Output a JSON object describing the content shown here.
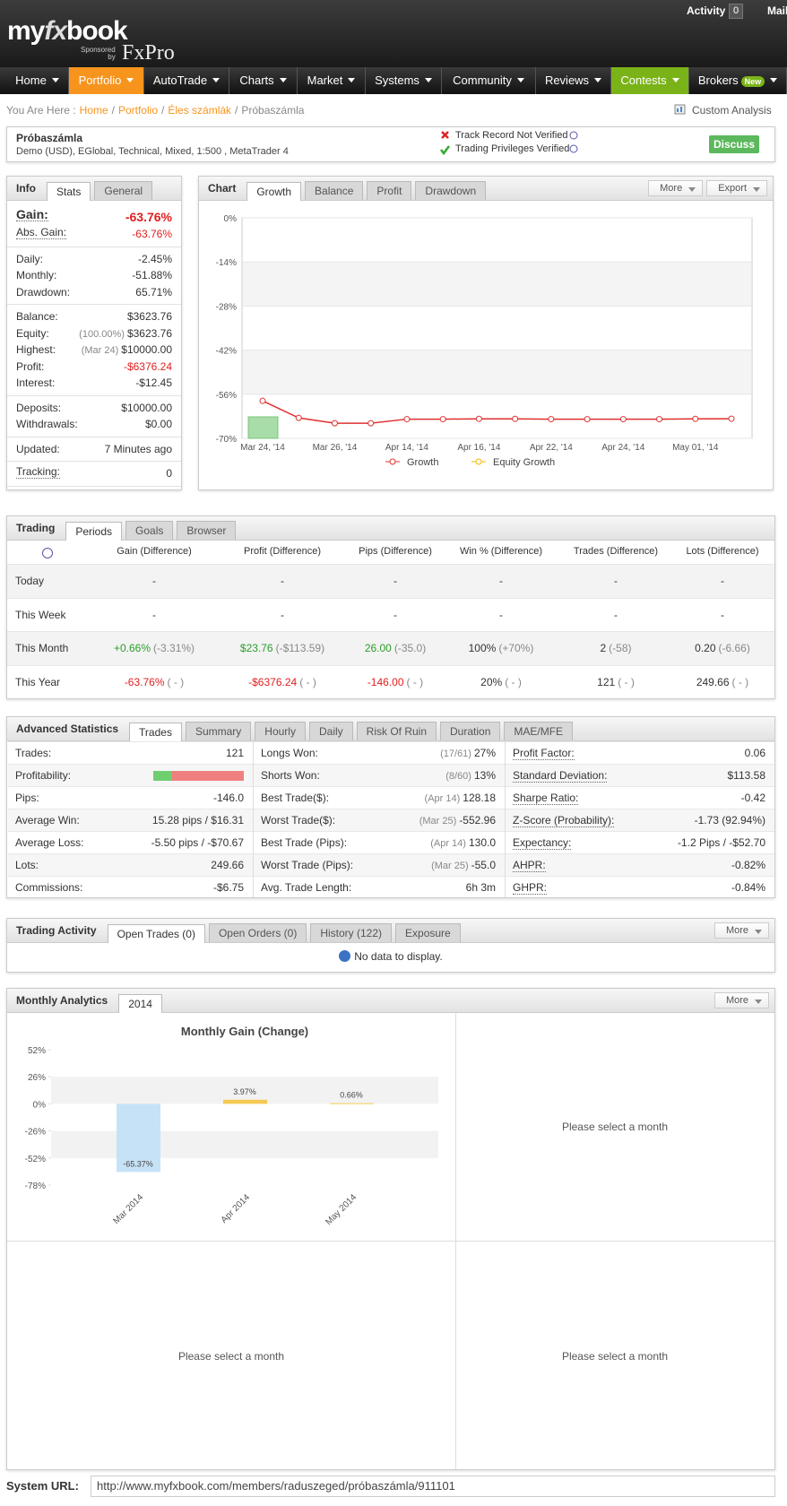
{
  "header": {
    "logo": [
      "my",
      "fx",
      "book"
    ],
    "sponsored": "Sponsored",
    "by": "by",
    "sponsor": "FxPro",
    "activity": "Activity",
    "activity_count": 0,
    "mail": "Mail"
  },
  "nav": {
    "items": [
      {
        "label": "Home"
      },
      {
        "label": "Portfolio",
        "color": "#f7941d"
      },
      {
        "label": "AutoTrade"
      },
      {
        "label": "Charts"
      },
      {
        "label": "Market"
      },
      {
        "label": "Systems"
      },
      {
        "label": "Community"
      },
      {
        "label": "Reviews"
      },
      {
        "label": "Contests",
        "color": "#7ab317"
      },
      {
        "label": "Brokers"
      }
    ],
    "badge": "New"
  },
  "breadcrumb": {
    "prefix": "You Are Here :",
    "separator": "/",
    "items": [
      "Home",
      "Portfolio",
      "Éles számlák",
      "Próbaszámla"
    ],
    "custom_analysis": "Custom Analysis"
  },
  "account": {
    "name": "Próbaszámla",
    "description": "Demo (USD), EGlobal, Technical, Mixed, 1:500 , MetaTrader 4",
    "status": [
      "Track Record Not Verified",
      "Trading Privileges Verified"
    ],
    "discuss": "Discuss"
  },
  "info": {
    "title": "Info",
    "tabs": [
      "Stats",
      "General"
    ],
    "groups": [
      [
        {
          "label": "Gain:",
          "value": "-63.76%",
          "color": "#e02020",
          "underline": true
        },
        {
          "label": "Abs. Gain:",
          "value": "-63.76%",
          "color": "#e02020",
          "underline": true
        }
      ],
      [
        {
          "label": "Daily:",
          "value": "-2.45%"
        },
        {
          "label": "Monthly:",
          "value": "-51.88%"
        },
        {
          "label": "Drawdown:",
          "value": "65.71%"
        }
      ],
      [
        {
          "label": "Balance:",
          "value": "$3623.76"
        },
        {
          "label": "Equity:",
          "note": "(100.00%)",
          "value": "$3623.76"
        },
        {
          "label": "Highest:",
          "note": "(Mar 24)",
          "value": "$10000.00"
        },
        {
          "label": "Profit:",
          "value": "-$6376.24",
          "color": "#e02020"
        },
        {
          "label": "Interest:",
          "value": "-$12.45"
        }
      ],
      [
        {
          "label": "Deposits:",
          "value": "$10000.00"
        },
        {
          "label": "Withdrawals:",
          "value": "$0.00"
        }
      ],
      [
        {
          "label": "Updated:",
          "value": "7 Minutes ago"
        }
      ],
      [
        {
          "label": "Tracking:",
          "value": "0",
          "underline": true
        }
      ]
    ]
  },
  "chart": {
    "title": "Chart",
    "tabs": [
      "Growth",
      "Balance",
      "Profit",
      "Drawdown"
    ],
    "buttons": [
      "More",
      "Export"
    ],
    "growth_chart": {
      "type": "line",
      "categories": [
        "Mar 24, '14",
        null,
        "Mar 26, '14",
        null,
        "Apr 14, '14",
        null,
        "Apr 16, '14",
        null,
        "Apr 22, '14",
        null,
        "Apr 24, '14",
        null,
        "May 01, '14",
        null
      ],
      "series": [
        {
          "name": "Growth",
          "color": "#e03030",
          "values": [
            -58.1,
            -63.5,
            -65.2,
            -65.2,
            -63.9,
            -63.9,
            -63.8,
            -63.8,
            -63.9,
            -63.9,
            -63.9,
            -63.9,
            -63.8,
            -63.76
          ]
        },
        {
          "name": "Equity Growth",
          "color": "#f5b800",
          "values": [
            null,
            null,
            null,
            null,
            null,
            null,
            null,
            null,
            null,
            null,
            null,
            null,
            null,
            null
          ]
        }
      ],
      "ylim": [
        -70,
        0
      ],
      "yticks": [
        {
          "value": 0,
          "label": "0%"
        },
        {
          "value": -14,
          "label": "-14%"
        },
        {
          "value": -28,
          "label": "-28%"
        },
        {
          "value": -42,
          "label": "-42%"
        },
        {
          "value": -56,
          "label": "-56%"
        },
        {
          "value": -70,
          "label": "-70%"
        }
      ],
      "grid": true
    }
  },
  "trading": {
    "title": "Trading",
    "tabs": [
      "Periods",
      "Goals",
      "Browser"
    ],
    "columns": [
      "Gain (Difference)",
      "Profit (Difference)",
      "Pips (Difference)",
      "Win % (Difference)",
      "Trades (Difference)",
      "Lots (Difference)"
    ],
    "rows": [
      {
        "label": "Today",
        "cells": [
          [
            "-"
          ],
          [
            "-"
          ],
          [
            "-"
          ],
          [
            "-"
          ],
          [
            "-"
          ],
          [
            "-"
          ]
        ],
        "colors": [
          "#333",
          "#333",
          "#333",
          "#333",
          "#333",
          "#333"
        ]
      },
      {
        "label": "This Week",
        "cells": [
          [
            "-"
          ],
          [
            "-"
          ],
          [
            "-"
          ],
          [
            "-"
          ],
          [
            "-"
          ],
          [
            "-"
          ]
        ],
        "colors": [
          "#333",
          "#333",
          "#333",
          "#333",
          "#333",
          "#333"
        ]
      },
      {
        "label": "This Month",
        "cells": [
          [
            "+0.66%",
            "(-3.31%)"
          ],
          [
            "$23.76",
            "(-$113.59)"
          ],
          [
            "26.00",
            "(-35.0)"
          ],
          [
            "100%",
            "(+70%)"
          ],
          [
            "2",
            "(-58)"
          ],
          [
            "0.20",
            "(-6.66)"
          ]
        ],
        "colors": [
          "#2a9d2a",
          "#2a9d2a",
          "#2a9d2a",
          "#333",
          "#333",
          "#333"
        ]
      },
      {
        "label": "This Year",
        "cells": [
          [
            "-63.76%",
            "( - )"
          ],
          [
            "-$6376.24",
            "( - )"
          ],
          [
            "-146.00",
            "( - )"
          ],
          [
            "20%",
            "( - )"
          ],
          [
            "121",
            "( - )"
          ],
          [
            "249.66",
            "( - )"
          ]
        ],
        "colors": [
          "#e02020",
          "#e02020",
          "#e02020",
          "#333",
          "#333",
          "#333"
        ]
      }
    ]
  },
  "advanced": {
    "title": "Advanced Statistics",
    "tabs": [
      "Trades",
      "Summary",
      "Hourly",
      "Daily",
      "Risk Of Ruin",
      "Duration",
      "MAE/MFE"
    ],
    "columns": [
      [
        {
          "label": "Trades:",
          "value": "121"
        },
        {
          "label": "Profitability:",
          "bar": 21,
          "bar_colors": [
            "#6fcf6f",
            "#f08080"
          ]
        },
        {
          "label": "Pips:",
          "value": "-146.0"
        },
        {
          "label": "Average Win:",
          "value": "15.28 pips / $16.31"
        },
        {
          "label": "Average Loss:",
          "value": "-5.50 pips / -$70.67"
        },
        {
          "label": "Lots:",
          "value": "249.66"
        },
        {
          "label": "Commissions:",
          "value": "-$6.75"
        }
      ],
      [
        {
          "label": "Longs Won:",
          "note": "(17/61)",
          "value": "27%"
        },
        {
          "label": "Shorts Won:",
          "note": "(8/60)",
          "value": "13%"
        },
        {
          "label": "Best Trade($):",
          "note": "(Apr 14)",
          "value": "128.18"
        },
        {
          "label": "Worst Trade($):",
          "note": "(Mar 25)",
          "value": "-552.96"
        },
        {
          "label": "Best Trade (Pips):",
          "note": "(Apr 14)",
          "value": "130.0"
        },
        {
          "label": "Worst Trade (Pips):",
          "note": "(Mar 25)",
          "value": "-55.0"
        },
        {
          "label": "Avg. Trade Length:",
          "value": "6h 3m"
        }
      ],
      [
        {
          "label": "Profit Factor:",
          "value": "0.06",
          "underline": true
        },
        {
          "label": "Standard Deviation:",
          "value": "$113.58",
          "underline": true
        },
        {
          "label": "Sharpe Ratio:",
          "value": "-0.42",
          "underline": true
        },
        {
          "label": "Z-Score (Probability):",
          "value": "-1.73 (92.94%)",
          "underline": true
        },
        {
          "label": "Expectancy:",
          "value": "-1.2 Pips / -$52.70",
          "underline": true
        },
        {
          "label": "AHPR:",
          "value": "-0.82%",
          "underline": true
        },
        {
          "label": "GHPR:",
          "value": "-0.84%",
          "underline": true
        }
      ]
    ]
  },
  "activity": {
    "title": "Trading Activity",
    "tabs": [
      "Open Trades (0)",
      "Open Orders (0)",
      "History (122)",
      "Exposure"
    ],
    "buttons": [
      "More"
    ],
    "empty": "No data to display."
  },
  "monthly": {
    "title": "Monthly Analytics",
    "tabs": [
      "2014"
    ],
    "buttons": [
      "More"
    ],
    "chart": {
      "type": "bar",
      "title": "Monthly Gain (Change)",
      "categories": [
        "Mar 2014",
        "Apr 2014",
        "May 2014"
      ],
      "values": [
        -65.37,
        3.97,
        0.66
      ],
      "value_labels": [
        "-65.37%",
        "3.97%",
        "0.66%"
      ],
      "colors": [
        "#c6e2f7",
        "#f6c955",
        "#f6c955"
      ],
      "ylim": [
        -78,
        52
      ],
      "yticks": [
        {
          "value": 52,
          "label": "52%"
        },
        {
          "value": 26,
          "label": "26%"
        },
        {
          "value": 0,
          "label": "0%"
        },
        {
          "value": -26,
          "label": "-26%"
        },
        {
          "value": -52,
          "label": "-52%"
        },
        {
          "value": -78,
          "label": "-78%"
        }
      ]
    },
    "placeholders": [
      "Please select a month",
      "Please select a month",
      "Please select a month"
    ]
  },
  "system_url": {
    "label": "System URL:",
    "value": "http://www.myfxbook.com/members/raduszeged/próbaszámla/911101"
  }
}
